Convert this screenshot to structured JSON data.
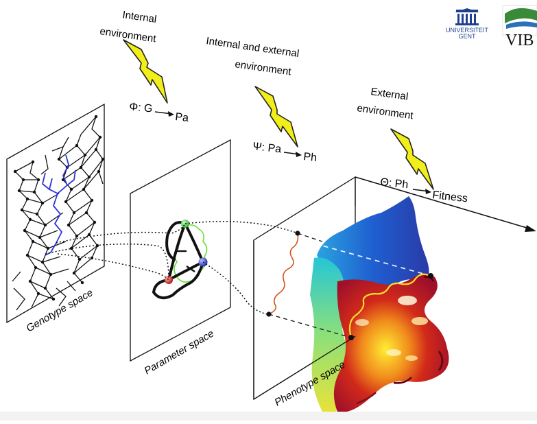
{
  "logos": {
    "ugent_line1": "UNIVERSITEIT",
    "ugent_line2": "GENT",
    "vib": "VIB",
    "colors": {
      "ugent_blue": "#1f3f8f",
      "vib_green": "#3a8a3a",
      "vib_text": "#111111"
    }
  },
  "environments": {
    "internal_line1": "Internal",
    "internal_line2": "environment",
    "int_ext_line1": "Internal and external",
    "int_ext_line2": "environment",
    "external_line1": "External",
    "external_line2": "environment",
    "bolt_color": "#f2ee1a"
  },
  "mappings": {
    "phi_sym": "Φ: G",
    "phi_target": "Pa",
    "psi_sym": "Ψ: Pa",
    "psi_target": "Ph",
    "theta_sym": "Θ: Ph",
    "theta_target": "Fitness"
  },
  "spaces": {
    "genotype": "Genotype space",
    "parameter": "Parameter space",
    "phenotype": "Phenotype space"
  },
  "colors": {
    "network_black": "#111111",
    "network_blue": "#2b35d6",
    "node_green": "#3ec63e",
    "node_red": "#d42020",
    "node_blue": "#2233cc",
    "lime_loop": "#6bdc3a",
    "orange_path": "#d4521a",
    "yellow_path": "#f5e02a"
  }
}
